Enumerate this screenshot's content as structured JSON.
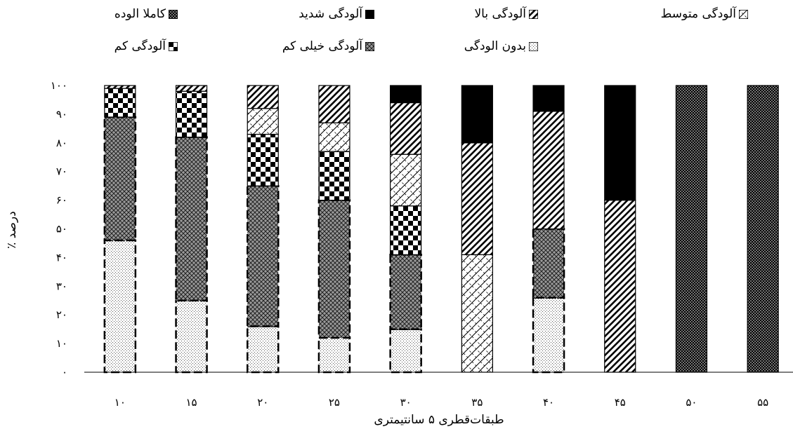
{
  "chart_data": {
    "type": "bar",
    "stacked": true,
    "xlabel": "طبقات‌قطری ۵ سانتیمتری",
    "ylabel": "درصد ٪",
    "ylim": [
      0,
      100
    ],
    "y_ticks": [
      "۰",
      "۱۰",
      "۲۰",
      "۳۰",
      "۴۰",
      "۵۰",
      "۶۰",
      "۷۰",
      "۸۰",
      "۹۰",
      "۱۰۰"
    ],
    "categories": [
      "۱۰",
      "۱۵",
      "۲۰",
      "۲۵",
      "۳۰",
      "۳۵",
      "۴۰",
      "۴۵",
      "۵۰",
      "۵۵"
    ],
    "grid": false,
    "legend_position": "top",
    "series": [
      {
        "name": "بدون الودگی",
        "key": "none",
        "values": [
          46,
          25,
          16,
          12,
          15,
          0,
          26,
          0,
          0,
          0
        ]
      },
      {
        "name": "آلودگی  خیلی کم",
        "key": "verylow",
        "values": [
          43,
          57,
          49,
          48,
          26,
          0,
          24,
          0,
          0,
          0
        ]
      },
      {
        "name": "آلودگی کم",
        "key": "low",
        "values": [
          10,
          16,
          18,
          17,
          17,
          0,
          0,
          0,
          0,
          0
        ]
      },
      {
        "name": "آلودگی متوسط",
        "key": "medium",
        "values": [
          0,
          0,
          9,
          10,
          18,
          41,
          0,
          0,
          0,
          0
        ]
      },
      {
        "name": "آلودگی بالا",
        "key": "high",
        "values": [
          1,
          2,
          8,
          13,
          18,
          39,
          41,
          60,
          0,
          0
        ]
      },
      {
        "name": "آلودگی شدید",
        "key": "severe",
        "values": [
          0,
          0,
          0,
          0,
          6,
          20,
          9,
          40,
          0,
          0
        ]
      },
      {
        "name": "کاملا الوده",
        "key": "complete",
        "values": [
          0,
          0,
          0,
          0,
          0,
          0,
          0,
          0,
          100,
          100
        ]
      }
    ]
  }
}
